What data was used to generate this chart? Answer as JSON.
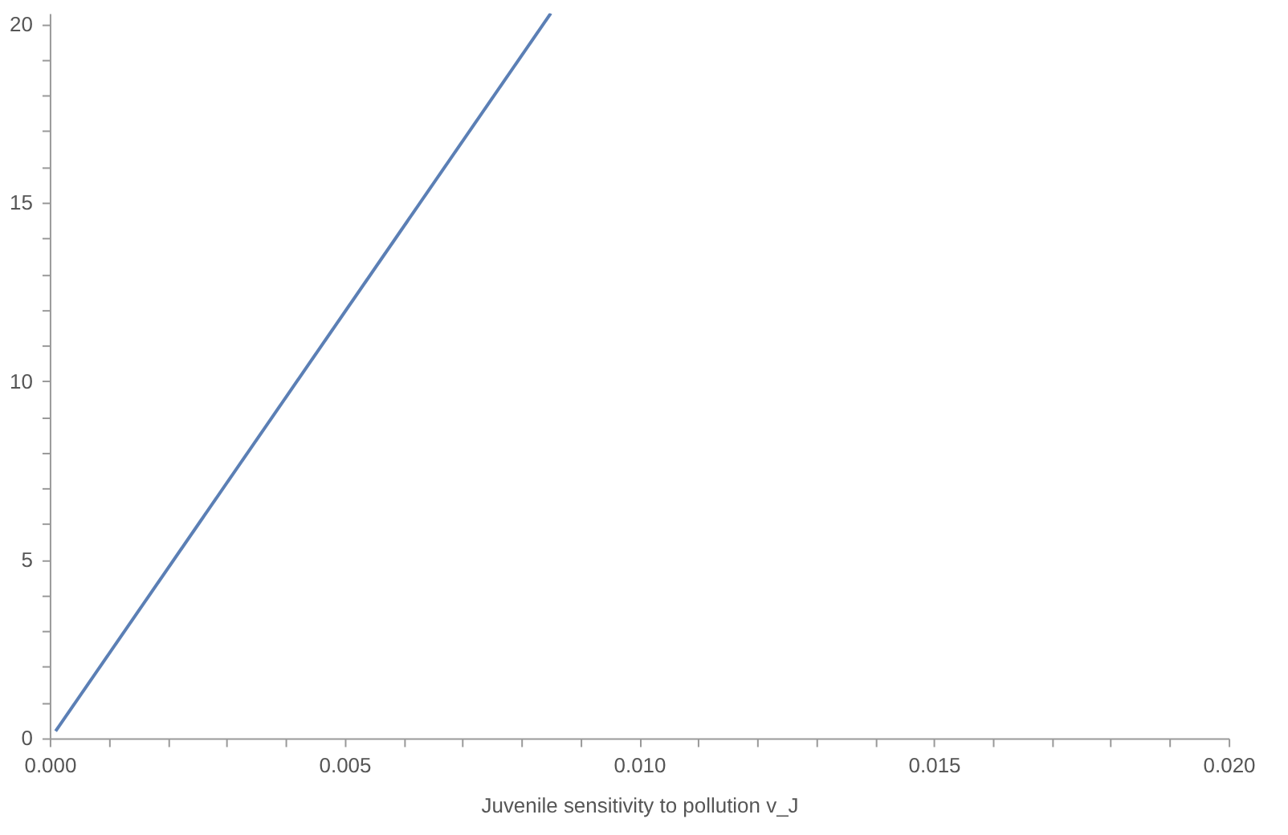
{
  "chart_data": {
    "type": "line",
    "xlabel": "Juvenile sensitivity to pollution v_J",
    "x": [
      0.0001,
      0.0085
    ],
    "series": [
      {
        "color": "#5b7fb5",
        "values": [
          0.2,
          20.3
        ]
      }
    ],
    "xlim": [
      0,
      0.02
    ],
    "ylim": [
      0,
      20.3
    ],
    "xticks": [
      {
        "value": 0,
        "label": "0.000"
      },
      {
        "value": 0.001,
        "label": null
      },
      {
        "value": 0.002,
        "label": null
      },
      {
        "value": 0.003,
        "label": null
      },
      {
        "value": 0.004,
        "label": null
      },
      0.005,
      {
        "value": 0.006,
        "label": null
      },
      {
        "value": 0.007,
        "label": null
      },
      {
        "value": 0.008,
        "label": null
      },
      {
        "value": 0.009,
        "label": null
      },
      {
        "value": 0.01,
        "label": "0.010"
      },
      {
        "value": 0.011,
        "label": null
      },
      {
        "value": 0.012,
        "label": null
      },
      {
        "value": 0.013,
        "label": null
      },
      {
        "value": 0.014,
        "label": null
      },
      0.015,
      {
        "value": 0.016,
        "label": null
      },
      {
        "value": 0.017,
        "label": null
      },
      {
        "value": 0.018,
        "label": null
      },
      {
        "value": 0.019,
        "label": null
      },
      {
        "value": 0.02,
        "label": "0.020"
      }
    ],
    "yticks": [
      0,
      {
        "value": 1,
        "label": null
      },
      {
        "value": 2,
        "label": null
      },
      {
        "value": 3,
        "label": null
      },
      {
        "value": 4,
        "label": null
      },
      5,
      {
        "value": 6,
        "label": null
      },
      {
        "value": 7,
        "label": null
      },
      {
        "value": 8,
        "label": null
      },
      {
        "value": 9,
        "label": null
      },
      10,
      {
        "value": 11,
        "label": null
      },
      {
        "value": 12,
        "label": null
      },
      {
        "value": 13,
        "label": null
      },
      {
        "value": 14,
        "label": null
      },
      15,
      {
        "value": 16,
        "label": null
      },
      {
        "value": 17,
        "label": null
      },
      {
        "value": 18,
        "label": null
      },
      {
        "value": 19,
        "label": null
      },
      20
    ],
    "grid": false,
    "marker": "none",
    "line_style": "solid"
  }
}
